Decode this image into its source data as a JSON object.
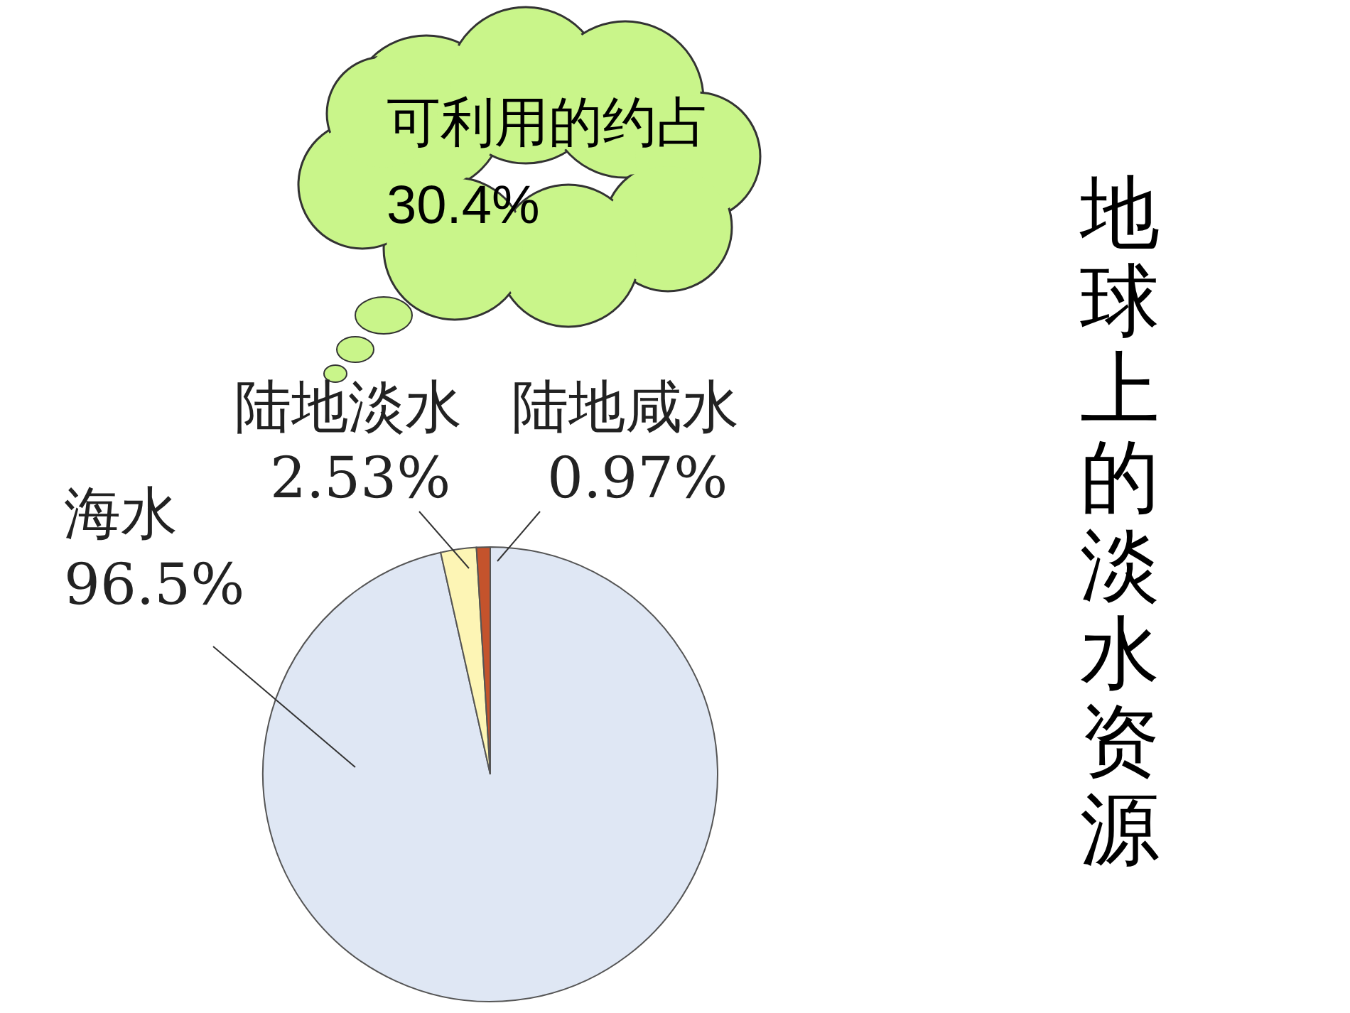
{
  "chart_data": {
    "type": "pie",
    "title": "地球上的淡水资源",
    "categories": [
      "海水",
      "陆地淡水",
      "陆地咸水"
    ],
    "values": [
      96.5,
      2.53,
      0.97
    ],
    "colors": [
      "#dfe7f4",
      "#fdf5b5",
      "#c4532c"
    ],
    "value_labels": [
      "96.5%",
      "2.53%",
      "0.97%"
    ],
    "annotations": [
      "可利用的约占 30.4%"
    ]
  }
}
